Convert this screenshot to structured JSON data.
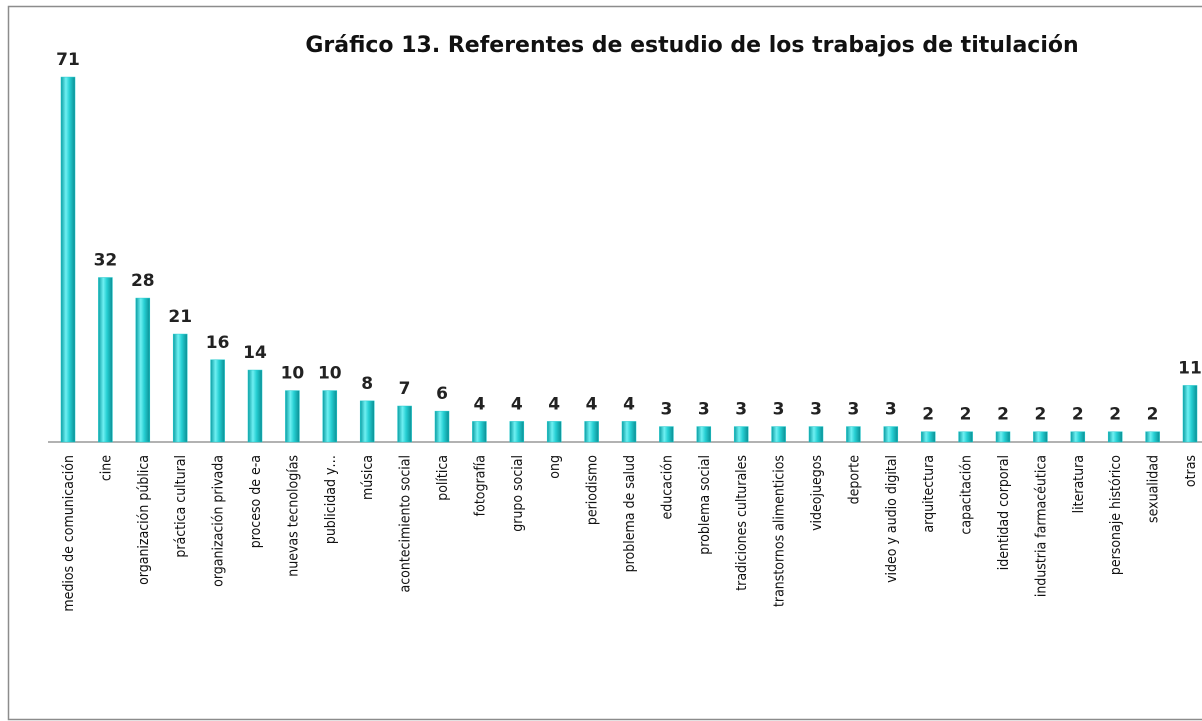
{
  "chart_data": {
    "type": "bar",
    "title": "Gráfico 13. Referentes de estudio de los trabajos  de titulación",
    "categories": [
      "medios de comunicación",
      "cine",
      "organización pública",
      "práctica cultural",
      "organización privada",
      "proceso de e-a",
      "nuevas tecnologías",
      "publicidad y…",
      "música",
      "acontecimiento social",
      "política",
      "fotografía",
      "grupo social",
      "ong",
      "periodismo",
      "problema de salud",
      "educación",
      "problema social",
      "tradiciones culturales",
      "transtornos alimenticios",
      "videojuegos",
      "deporte",
      "video y audio digital",
      "arquitectura",
      "capacitación",
      "identidad corporal",
      "industria farmacéutica",
      "literatura",
      "personaje histórico",
      "sexualidad",
      "otras"
    ],
    "values": [
      71,
      32,
      28,
      21,
      16,
      14,
      10,
      10,
      8,
      7,
      6,
      4,
      4,
      4,
      4,
      4,
      3,
      3,
      3,
      3,
      3,
      3,
      3,
      2,
      2,
      2,
      2,
      2,
      2,
      2,
      11
    ],
    "color": "#1fc8cc"
  }
}
